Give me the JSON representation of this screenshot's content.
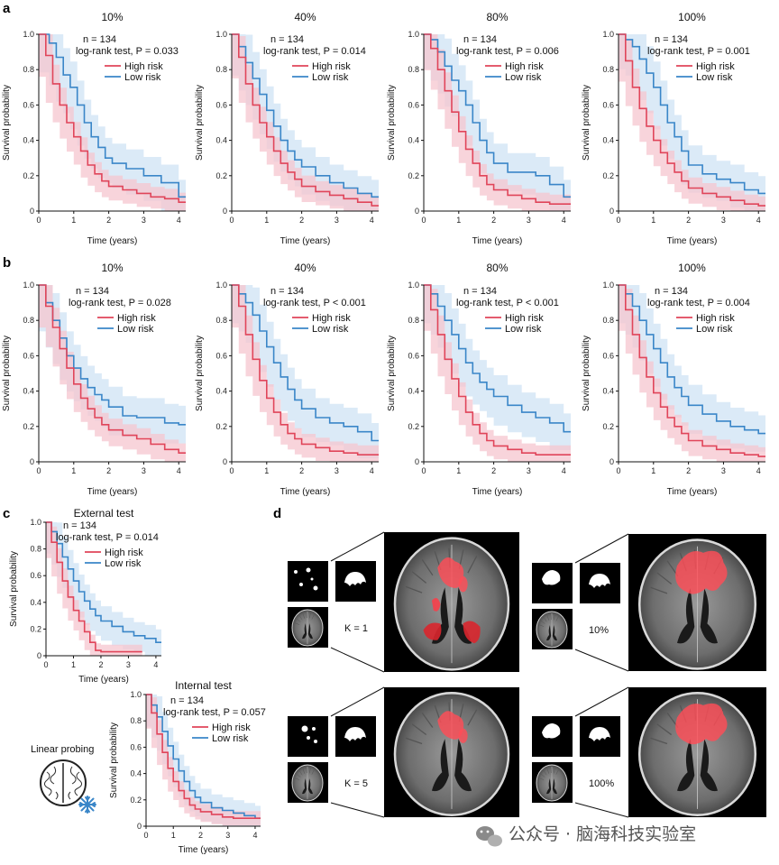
{
  "panel_labels": {
    "a": "a",
    "b": "b",
    "c": "c",
    "d": "d"
  },
  "axis": {
    "xlabel": "Time (years)",
    "ylabel": "Survival probability",
    "xticks": [
      "0",
      "1",
      "2",
      "3",
      "4"
    ],
    "yticks": [
      "0",
      "0.2",
      "0.4",
      "0.6",
      "0.8",
      "1.0"
    ]
  },
  "legend": {
    "high": "High risk",
    "low": "Low risk"
  },
  "colors": {
    "high": "#e0455a",
    "high_band": "#f6c5cf",
    "low": "#3a86c8",
    "low_band": "#cfe3f4"
  },
  "panel_c": {
    "linear_probing_label": "Linear probing",
    "brain_icon": "brain-icon",
    "frozen_icon": "snowflake-icon"
  },
  "panel_d": {
    "labels": [
      "K = 1",
      "10%",
      "K = 5",
      "100%"
    ]
  },
  "watermark": {
    "icon": "wechat-icon",
    "text": "公众号 · 脑海科技实验室"
  },
  "chart_data": [
    {
      "id": "a-10",
      "type": "line",
      "title": "10%",
      "n_text": "n = 134",
      "p_text": "log-rank test, P = 0.033",
      "xlim": [
        0,
        4.2
      ],
      "ylim": [
        0,
        1
      ],
      "series": [
        {
          "name": "High risk",
          "x": [
            0,
            0.2,
            0.4,
            0.6,
            0.8,
            1.0,
            1.2,
            1.4,
            1.6,
            1.8,
            2.0,
            2.4,
            2.8,
            3.2,
            3.6,
            4.0,
            4.2
          ],
          "y": [
            1.0,
            0.88,
            0.72,
            0.6,
            0.5,
            0.42,
            0.34,
            0.26,
            0.21,
            0.17,
            0.14,
            0.12,
            0.1,
            0.08,
            0.07,
            0.05,
            0.05
          ]
        },
        {
          "name": "Low risk",
          "x": [
            0,
            0.3,
            0.5,
            0.7,
            0.9,
            1.1,
            1.3,
            1.5,
            1.7,
            1.9,
            2.1,
            2.5,
            3.0,
            3.5,
            4.0,
            4.2
          ],
          "y": [
            1.0,
            0.95,
            0.87,
            0.77,
            0.7,
            0.6,
            0.5,
            0.42,
            0.36,
            0.3,
            0.27,
            0.24,
            0.2,
            0.16,
            0.08,
            0.08
          ]
        }
      ]
    },
    {
      "id": "a-40",
      "type": "line",
      "title": "40%",
      "n_text": "n = 134",
      "p_text": "log-rank test, P = 0.014",
      "xlim": [
        0,
        4.2
      ],
      "ylim": [
        0,
        1
      ],
      "series": [
        {
          "name": "High risk",
          "x": [
            0,
            0.2,
            0.4,
            0.6,
            0.8,
            1.0,
            1.2,
            1.4,
            1.6,
            1.8,
            2.0,
            2.4,
            2.8,
            3.2,
            3.6,
            4.0,
            4.2
          ],
          "y": [
            1.0,
            0.87,
            0.72,
            0.6,
            0.5,
            0.42,
            0.34,
            0.27,
            0.22,
            0.18,
            0.14,
            0.11,
            0.09,
            0.07,
            0.05,
            0.03,
            0.03
          ]
        },
        {
          "name": "Low risk",
          "x": [
            0,
            0.2,
            0.4,
            0.6,
            0.8,
            1.0,
            1.2,
            1.4,
            1.6,
            1.8,
            2.0,
            2.4,
            2.8,
            3.2,
            3.6,
            4.0,
            4.2
          ],
          "y": [
            1.0,
            0.93,
            0.84,
            0.75,
            0.66,
            0.57,
            0.48,
            0.4,
            0.34,
            0.29,
            0.25,
            0.2,
            0.16,
            0.13,
            0.1,
            0.08,
            0.08
          ]
        }
      ]
    },
    {
      "id": "a-80",
      "type": "line",
      "title": "80%",
      "n_text": "n = 134",
      "p_text": "log-rank test, P = 0.006",
      "xlim": [
        0,
        4.2
      ],
      "ylim": [
        0,
        1
      ],
      "series": [
        {
          "name": "High risk",
          "x": [
            0,
            0.2,
            0.4,
            0.6,
            0.8,
            1.0,
            1.2,
            1.4,
            1.6,
            1.8,
            2.0,
            2.4,
            2.8,
            3.2,
            3.6,
            4.0,
            4.2
          ],
          "y": [
            1.0,
            0.92,
            0.8,
            0.68,
            0.56,
            0.45,
            0.35,
            0.27,
            0.2,
            0.15,
            0.12,
            0.09,
            0.07,
            0.05,
            0.04,
            0.04,
            0.04
          ]
        },
        {
          "name": "Low risk",
          "x": [
            0,
            0.2,
            0.4,
            0.6,
            0.8,
            1.0,
            1.2,
            1.4,
            1.6,
            1.8,
            2.0,
            2.4,
            2.8,
            3.2,
            3.6,
            4.0,
            4.2
          ],
          "y": [
            1.0,
            0.97,
            0.9,
            0.82,
            0.74,
            0.68,
            0.6,
            0.5,
            0.4,
            0.33,
            0.27,
            0.22,
            0.22,
            0.2,
            0.15,
            0.08,
            0.08
          ]
        }
      ]
    },
    {
      "id": "a-100",
      "type": "line",
      "title": "100%",
      "n_text": "n = 134",
      "p_text": "log-rank test, P = 0.001",
      "xlim": [
        0,
        4.2
      ],
      "ylim": [
        0,
        1
      ],
      "series": [
        {
          "name": "High risk",
          "x": [
            0,
            0.2,
            0.4,
            0.6,
            0.8,
            1.0,
            1.2,
            1.4,
            1.6,
            1.8,
            2.0,
            2.4,
            2.8,
            3.2,
            3.6,
            4.0,
            4.2
          ],
          "y": [
            1.0,
            0.85,
            0.7,
            0.58,
            0.48,
            0.4,
            0.33,
            0.27,
            0.22,
            0.17,
            0.13,
            0.1,
            0.08,
            0.06,
            0.04,
            0.03,
            0.03
          ]
        },
        {
          "name": "Low risk",
          "x": [
            0,
            0.2,
            0.4,
            0.6,
            0.8,
            1.0,
            1.2,
            1.4,
            1.6,
            1.8,
            2.0,
            2.4,
            2.8,
            3.2,
            3.6,
            4.0,
            4.2
          ],
          "y": [
            1.0,
            0.97,
            0.93,
            0.86,
            0.78,
            0.7,
            0.6,
            0.5,
            0.42,
            0.34,
            0.26,
            0.21,
            0.18,
            0.16,
            0.12,
            0.1,
            0.1
          ]
        }
      ]
    },
    {
      "id": "b-10",
      "type": "line",
      "title": "10%",
      "n_text": "n = 134",
      "p_text": "log-rank test, P = 0.028",
      "xlim": [
        0,
        4.2
      ],
      "ylim": [
        0,
        1
      ],
      "series": [
        {
          "name": "High risk",
          "x": [
            0,
            0.2,
            0.4,
            0.6,
            0.8,
            1.0,
            1.2,
            1.4,
            1.6,
            1.8,
            2.0,
            2.4,
            2.8,
            3.2,
            3.6,
            4.0,
            4.2
          ],
          "y": [
            1.0,
            0.88,
            0.76,
            0.64,
            0.53,
            0.44,
            0.36,
            0.3,
            0.25,
            0.21,
            0.18,
            0.15,
            0.13,
            0.1,
            0.07,
            0.05,
            0.05
          ]
        },
        {
          "name": "Low risk",
          "x": [
            0,
            0.2,
            0.4,
            0.6,
            0.8,
            1.0,
            1.2,
            1.4,
            1.6,
            1.8,
            2.0,
            2.4,
            2.8,
            3.2,
            3.6,
            4.0,
            4.2
          ],
          "y": [
            1.0,
            0.9,
            0.8,
            0.7,
            0.6,
            0.53,
            0.47,
            0.42,
            0.38,
            0.35,
            0.31,
            0.26,
            0.25,
            0.25,
            0.22,
            0.21,
            0.21
          ]
        }
      ]
    },
    {
      "id": "b-40",
      "type": "line",
      "title": "40%",
      "n_text": "n = 134",
      "p_text": "log-rank test, P < 0.001",
      "xlim": [
        0,
        4.2
      ],
      "ylim": [
        0,
        1
      ],
      "series": [
        {
          "name": "High risk",
          "x": [
            0,
            0.2,
            0.4,
            0.6,
            0.8,
            1.0,
            1.2,
            1.4,
            1.6,
            1.8,
            2.0,
            2.4,
            2.8,
            3.2,
            3.6,
            4.0,
            4.2
          ],
          "y": [
            1.0,
            0.88,
            0.72,
            0.58,
            0.46,
            0.36,
            0.28,
            0.21,
            0.16,
            0.13,
            0.1,
            0.08,
            0.06,
            0.05,
            0.04,
            0.04,
            0.04
          ]
        },
        {
          "name": "Low risk",
          "x": [
            0,
            0.2,
            0.4,
            0.6,
            0.8,
            1.0,
            1.2,
            1.4,
            1.6,
            1.8,
            2.0,
            2.4,
            2.8,
            3.2,
            3.6,
            4.0,
            4.2
          ],
          "y": [
            1.0,
            0.95,
            0.9,
            0.83,
            0.74,
            0.65,
            0.56,
            0.48,
            0.41,
            0.35,
            0.3,
            0.25,
            0.22,
            0.2,
            0.17,
            0.12,
            0.12
          ]
        }
      ]
    },
    {
      "id": "b-80",
      "type": "line",
      "title": "80%",
      "n_text": "n = 134",
      "p_text": "log-rank test, P < 0.001",
      "xlim": [
        0,
        4.2
      ],
      "ylim": [
        0,
        1
      ],
      "series": [
        {
          "name": "High risk",
          "x": [
            0,
            0.2,
            0.4,
            0.6,
            0.8,
            1.0,
            1.2,
            1.4,
            1.6,
            1.8,
            2.0,
            2.4,
            2.8,
            3.2,
            3.6,
            4.0,
            4.2
          ],
          "y": [
            1.0,
            0.86,
            0.72,
            0.58,
            0.47,
            0.37,
            0.28,
            0.21,
            0.16,
            0.12,
            0.09,
            0.07,
            0.05,
            0.04,
            0.04,
            0.04,
            0.04
          ]
        },
        {
          "name": "Low risk",
          "x": [
            0,
            0.2,
            0.4,
            0.6,
            0.8,
            1.0,
            1.2,
            1.4,
            1.6,
            1.8,
            2.0,
            2.4,
            2.8,
            3.2,
            3.6,
            4.0,
            4.2
          ],
          "y": [
            1.0,
            0.95,
            0.88,
            0.8,
            0.72,
            0.64,
            0.56,
            0.5,
            0.45,
            0.41,
            0.37,
            0.32,
            0.28,
            0.25,
            0.22,
            0.17,
            0.17
          ]
        }
      ]
    },
    {
      "id": "b-100",
      "type": "line",
      "title": "100%",
      "n_text": "n = 134",
      "p_text": "log-rank test, P = 0.004",
      "xlim": [
        0,
        4.2
      ],
      "ylim": [
        0,
        1
      ],
      "series": [
        {
          "name": "High risk",
          "x": [
            0,
            0.2,
            0.4,
            0.6,
            0.8,
            1.0,
            1.2,
            1.4,
            1.6,
            1.8,
            2.0,
            2.4,
            2.8,
            3.2,
            3.6,
            4.0,
            4.2
          ],
          "y": [
            1.0,
            0.86,
            0.72,
            0.59,
            0.48,
            0.39,
            0.31,
            0.25,
            0.2,
            0.16,
            0.12,
            0.09,
            0.07,
            0.05,
            0.04,
            0.03,
            0.03
          ]
        },
        {
          "name": "Low risk",
          "x": [
            0,
            0.2,
            0.4,
            0.6,
            0.8,
            1.0,
            1.2,
            1.4,
            1.6,
            1.8,
            2.0,
            2.4,
            2.8,
            3.2,
            3.6,
            4.0,
            4.2
          ],
          "y": [
            1.0,
            0.95,
            0.88,
            0.8,
            0.72,
            0.64,
            0.56,
            0.48,
            0.42,
            0.37,
            0.32,
            0.27,
            0.23,
            0.2,
            0.18,
            0.16,
            0.16
          ]
        }
      ]
    },
    {
      "id": "c-ext",
      "type": "line",
      "title": "External test",
      "n_text": "n = 134",
      "p_text": "log-rank test, P = 0.014",
      "xlim": [
        0,
        4.2
      ],
      "ylim": [
        0,
        1
      ],
      "series": [
        {
          "name": "High risk",
          "x": [
            0,
            0.2,
            0.4,
            0.6,
            0.8,
            1.0,
            1.2,
            1.4,
            1.6,
            1.8,
            2.0,
            2.5,
            3.0,
            3.5
          ],
          "y": [
            1.0,
            0.85,
            0.7,
            0.56,
            0.44,
            0.34,
            0.26,
            0.18,
            0.1,
            0.04,
            0.03,
            0.03,
            0.03,
            0.03
          ]
        },
        {
          "name": "Low risk",
          "x": [
            0,
            0.2,
            0.4,
            0.6,
            0.8,
            1.0,
            1.2,
            1.4,
            1.6,
            1.8,
            2.0,
            2.4,
            2.8,
            3.2,
            3.6,
            4.0,
            4.2
          ],
          "y": [
            1.0,
            0.93,
            0.84,
            0.74,
            0.65,
            0.56,
            0.48,
            0.41,
            0.35,
            0.3,
            0.26,
            0.22,
            0.18,
            0.15,
            0.13,
            0.1,
            0.1
          ]
        }
      ]
    },
    {
      "id": "c-int",
      "type": "line",
      "title": "Internal test",
      "n_text": "n = 134",
      "p_text": "log-rank test, P = 0.057",
      "xlim": [
        0,
        4.2
      ],
      "ylim": [
        0,
        1
      ],
      "series": [
        {
          "name": "High risk",
          "x": [
            0,
            0.2,
            0.4,
            0.6,
            0.8,
            1.0,
            1.2,
            1.4,
            1.6,
            1.8,
            2.0,
            2.4,
            2.8,
            3.2,
            3.6,
            4.0,
            4.2
          ],
          "y": [
            1.0,
            0.86,
            0.7,
            0.56,
            0.44,
            0.34,
            0.27,
            0.21,
            0.16,
            0.13,
            0.11,
            0.09,
            0.07,
            0.06,
            0.06,
            0.06,
            0.06
          ]
        },
        {
          "name": "Low risk",
          "x": [
            0,
            0.2,
            0.4,
            0.6,
            0.8,
            1.0,
            1.2,
            1.4,
            1.6,
            1.8,
            2.0,
            2.4,
            2.8,
            3.2,
            3.6,
            4.0,
            4.2
          ],
          "y": [
            1.0,
            0.92,
            0.83,
            0.72,
            0.61,
            0.51,
            0.42,
            0.34,
            0.27,
            0.22,
            0.18,
            0.14,
            0.12,
            0.1,
            0.08,
            0.06,
            0.06
          ]
        }
      ]
    }
  ]
}
